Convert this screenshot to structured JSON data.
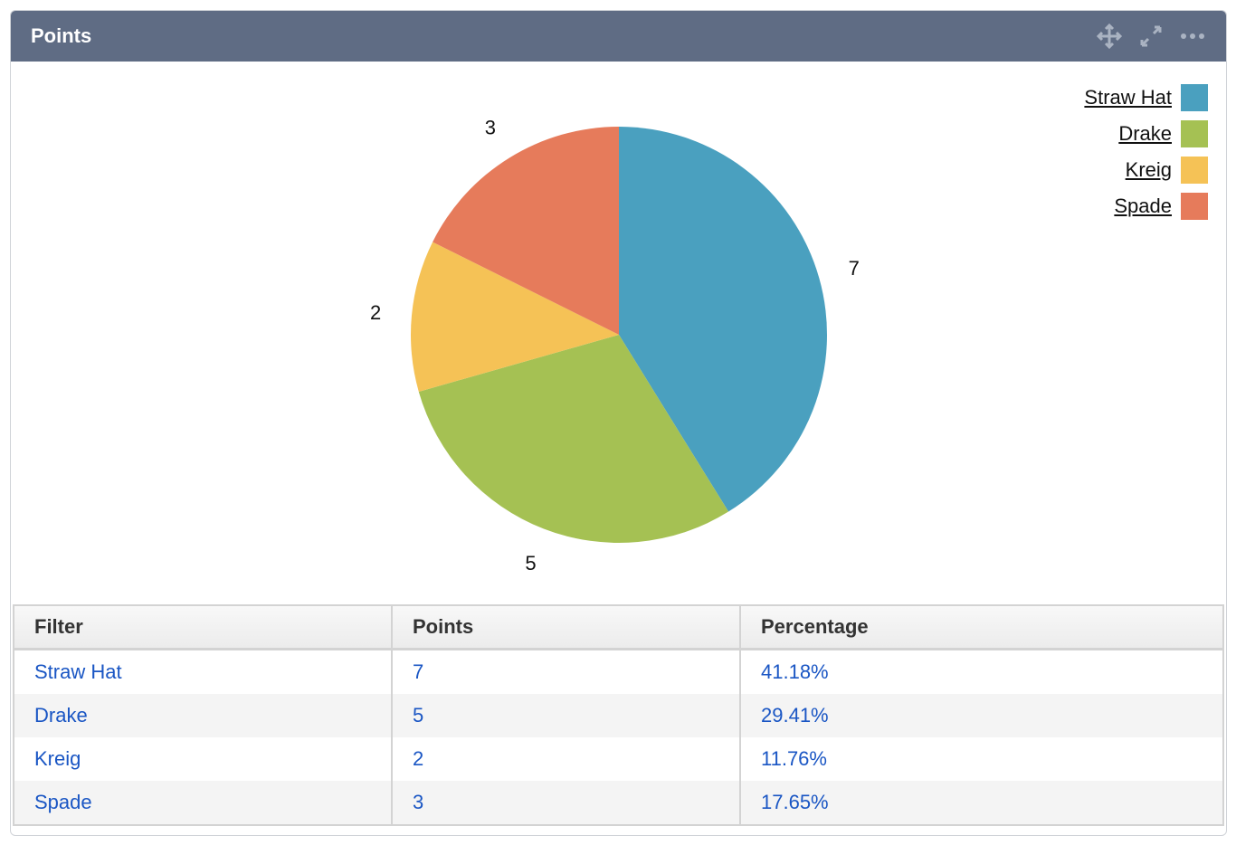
{
  "header": {
    "title": "Points",
    "icons": [
      "move-icon",
      "expand-icon",
      "more-icon"
    ]
  },
  "chart_data": {
    "type": "pie",
    "categories": [
      "Straw Hat",
      "Drake",
      "Kreig",
      "Spade"
    ],
    "values": [
      7,
      5,
      2,
      3
    ],
    "colors": [
      "#4aa0bf",
      "#a5c153",
      "#f5c256",
      "#e67b5b"
    ],
    "data_labels": [
      "7",
      "5",
      "2",
      "3"
    ],
    "legend_placement": "top-right",
    "start": "top, clockwise"
  },
  "table": {
    "headers": [
      "Filter",
      "Points",
      "Percentage"
    ],
    "rows": [
      [
        "Straw Hat",
        "7",
        "41.18%"
      ],
      [
        "Drake",
        "5",
        "29.41%"
      ],
      [
        "Kreig",
        "2",
        "11.76%"
      ],
      [
        "Spade",
        "3",
        "17.65%"
      ]
    ]
  }
}
